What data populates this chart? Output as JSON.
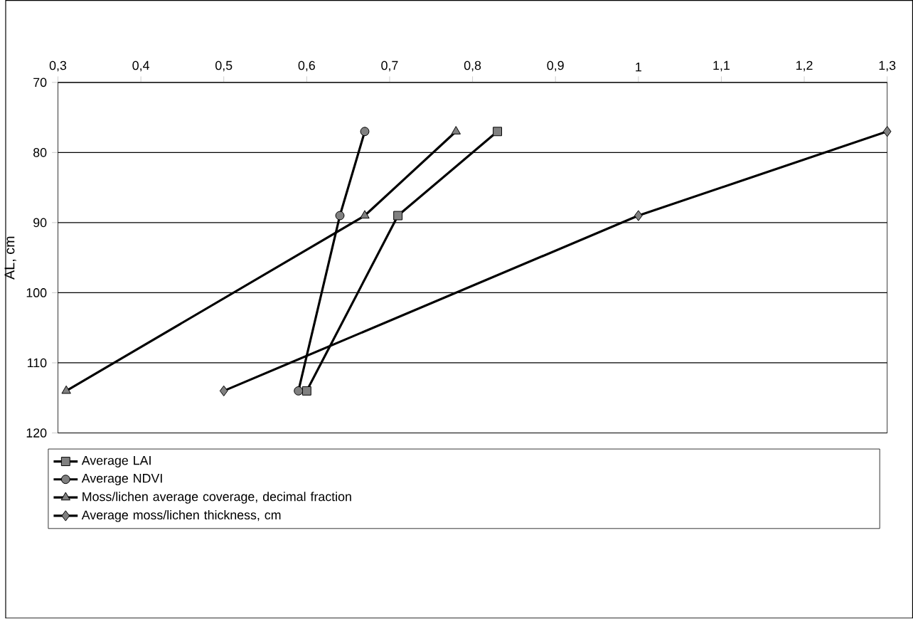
{
  "chart_data": {
    "type": "line",
    "ylabel": "AL, cm",
    "xlim": [
      0.3,
      1.3
    ],
    "xticks": [
      {
        "value": 0.3,
        "label": "0,3"
      },
      {
        "value": 0.4,
        "label": "0,4"
      },
      {
        "value": 0.5,
        "label": "0,5"
      },
      {
        "value": 0.6,
        "label": "0,6"
      },
      {
        "value": 0.7,
        "label": "0,7"
      },
      {
        "value": 0.8,
        "label": "0,8"
      },
      {
        "value": 0.9,
        "label": "0,9"
      },
      {
        "value": 1,
        "label": "1"
      },
      {
        "value": 1.1,
        "label": "1,1"
      },
      {
        "value": 1.2,
        "label": "1,2"
      },
      {
        "value": 1.3,
        "label": "1,3"
      }
    ],
    "ylim": [
      120,
      70
    ],
    "yticks": [
      70,
      80,
      90,
      100,
      110,
      120
    ],
    "grid": "y",
    "legend": "bottom",
    "line_style": "solid",
    "series": [
      {
        "name": "Average LAI",
        "color": "#000000",
        "marker": "square",
        "x": [
          0.83,
          0.71,
          0.6
        ],
        "values": [
          77,
          89,
          114
        ]
      },
      {
        "name": "Average NDVI",
        "color": "#000000",
        "marker": "circle",
        "x": [
          0.67,
          0.64,
          0.59
        ],
        "values": [
          77,
          89,
          114
        ]
      },
      {
        "name": "Moss/lichen average coverage, decimal fraction",
        "color": "#000000",
        "marker": "triangle",
        "x": [
          0.78,
          0.67,
          0.31
        ],
        "values": [
          77,
          89,
          114
        ]
      },
      {
        "name": "Average moss/lichen thickness, cm",
        "color": "#000000",
        "marker": "diamond",
        "x": [
          1.3,
          1.0,
          0.5
        ],
        "values": [
          77,
          89,
          114
        ]
      }
    ]
  }
}
